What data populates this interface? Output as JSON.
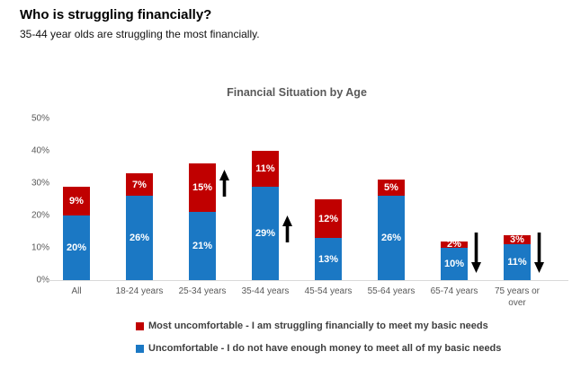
{
  "page": {
    "title": "Who is struggling financially?",
    "subtitle": "35-44 year olds are struggling the most financially."
  },
  "chart_data": {
    "type": "bar",
    "stacked": true,
    "title": "Financial Situation by Age",
    "categories": [
      "All",
      "18-24 years",
      "25-34 years",
      "35-44 years",
      "45-54 years",
      "55-64 years",
      "65-74 years",
      "75 years or over"
    ],
    "series": [
      {
        "name": "Uncomfortable - I do not have enough money to meet all of my basic needs",
        "color": "#1b78c4",
        "values": [
          20,
          26,
          21,
          29,
          13,
          26,
          10,
          11
        ]
      },
      {
        "name": "Most uncomfortable - I am struggling financially to meet my basic needs",
        "color": "#c00000",
        "values": [
          9,
          7,
          15,
          11,
          12,
          5,
          2,
          3
        ]
      }
    ],
    "data_label_format": "{v}%",
    "y_axis": {
      "min": 0,
      "max": 50,
      "tick_step": 10,
      "ticks": [
        "0%",
        "10%",
        "20%",
        "30%",
        "40%",
        "50%"
      ]
    },
    "gridlines": false,
    "legend_position": "bottom",
    "legend": [
      {
        "label": "Most uncomfortable - I am struggling financially to meet my basic needs",
        "color": "#c00000"
      },
      {
        "label": "Uncomfortable - I do not have enough money to meet all of my basic needs",
        "color": "#1b78c4"
      }
    ],
    "annotations": [
      {
        "category": "25-34 years",
        "direction": "up",
        "anchor": "red"
      },
      {
        "category": "35-44 years",
        "direction": "up",
        "anchor": "blue"
      },
      {
        "category": "65-74 years",
        "direction": "down",
        "anchor": "base"
      },
      {
        "category": "75 years or over",
        "direction": "down",
        "anchor": "base"
      }
    ],
    "colors": {
      "red": "#c00000",
      "blue": "#1b78c4",
      "axis_line": "#d9d9d9",
      "axis_text": "#595959"
    }
  }
}
